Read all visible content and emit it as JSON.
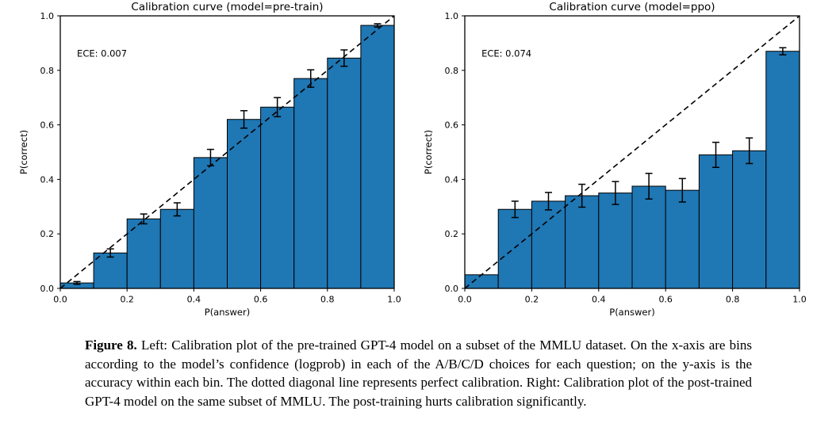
{
  "page": {
    "background": "#ffffff"
  },
  "colors": {
    "bar_fill": "#1f77b4",
    "bar_edge": "#000000",
    "error_bar": "#000000",
    "diagonal": "#000000",
    "axis": "#000000",
    "text": "#000000"
  },
  "chart_data": [
    {
      "type": "bar",
      "title": "Calibration curve (model=pre-train)",
      "annotation": "ECE: 0.007",
      "xlabel": "P(answer)",
      "ylabel": "P(correct)",
      "xlim": [
        0,
        1
      ],
      "ylim": [
        0,
        1
      ],
      "grid": false,
      "legend": "none",
      "diagonal_line": "perfect calibration (dashed, 0,0 to 1,1)",
      "bin_width": 0.1,
      "bin_starts": [
        0.0,
        0.1,
        0.2,
        0.3,
        0.4,
        0.5,
        0.6,
        0.7,
        0.8,
        0.9
      ],
      "values": [
        0.02,
        0.13,
        0.255,
        0.29,
        0.48,
        0.62,
        0.665,
        0.77,
        0.845,
        0.965
      ],
      "errors": [
        0.005,
        0.015,
        0.018,
        0.024,
        0.03,
        0.032,
        0.035,
        0.032,
        0.03,
        0.006
      ],
      "xticks": [
        "0.0",
        "0.2",
        "0.4",
        "0.6",
        "0.8",
        "1.0"
      ],
      "yticks": [
        "0.0",
        "0.2",
        "0.4",
        "0.6",
        "0.8",
        "1.0"
      ]
    },
    {
      "type": "bar",
      "title": "Calibration curve (model=ppo)",
      "annotation": "ECE: 0.074",
      "xlabel": "P(answer)",
      "ylabel": "P(correct)",
      "xlim": [
        0,
        1
      ],
      "ylim": [
        0,
        1
      ],
      "grid": false,
      "legend": "none",
      "diagonal_line": "perfect calibration (dashed, 0,0 to 1,1)",
      "bin_width": 0.1,
      "bin_starts": [
        0.0,
        0.1,
        0.2,
        0.3,
        0.4,
        0.5,
        0.6,
        0.7,
        0.8,
        0.9
      ],
      "values": [
        0.05,
        0.29,
        0.32,
        0.34,
        0.35,
        0.375,
        0.36,
        0.49,
        0.505,
        0.87
      ],
      "errors": [
        0,
        0.03,
        0.032,
        0.042,
        0.042,
        0.047,
        0.043,
        0.046,
        0.047,
        0.013
      ],
      "xticks": [
        "0.0",
        "0.2",
        "0.4",
        "0.6",
        "0.8",
        "1.0"
      ],
      "yticks": [
        "0.0",
        "0.2",
        "0.4",
        "0.6",
        "0.8",
        "1.0"
      ]
    }
  ],
  "caption": {
    "label": "Figure 8.",
    "text": " Left: Calibration plot of the pre-trained GPT-4 model on a subset of the MMLU dataset. On the x-axis are bins according to the model’s confidence (logprob) in each of the A/B/C/D choices for each question; on the y-axis is the accuracy within each bin. The dotted diagonal line represents perfect calibration. Right: Calibration plot of the post-trained GPT-4 model on the same subset of MMLU. The post-training hurts calibration significantly."
  }
}
